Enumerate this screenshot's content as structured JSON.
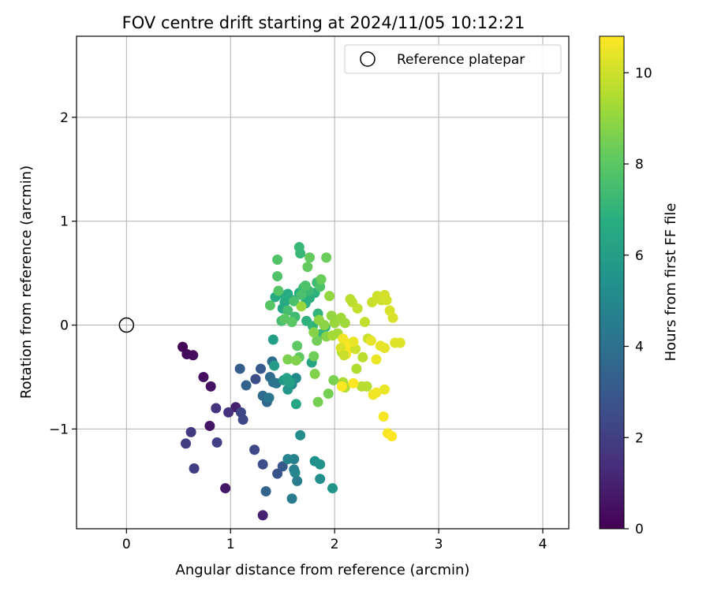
{
  "chart_data": {
    "type": "scatter",
    "title": "FOV centre drift starting at 2024/11/05 10:12:21",
    "xlabel": "Angular distance from reference (arcmin)",
    "ylabel": "Rotation from reference (arcmin)",
    "xlim": [
      -0.48,
      4.25
    ],
    "ylim": [
      -1.96,
      2.78
    ],
    "x_ticks": [
      0,
      1,
      2,
      3,
      4
    ],
    "y_ticks": [
      -1,
      0,
      1,
      2
    ],
    "grid": true,
    "legend_position": "top-right",
    "reference": {
      "label": "Reference platepar",
      "x": 0,
      "y": 0
    },
    "colorbar": {
      "label": "Hours from first FF file",
      "range": [
        0,
        10.8
      ],
      "ticks": [
        0,
        2,
        4,
        6,
        8,
        10
      ],
      "colormap": "viridis"
    },
    "points": [
      [
        0.54,
        -0.21,
        0.1
      ],
      [
        0.58,
        -0.28,
        0.2
      ],
      [
        0.64,
        -0.29,
        0.3
      ],
      [
        0.74,
        -0.5,
        0.4
      ],
      [
        0.81,
        -0.59,
        0.5
      ],
      [
        0.8,
        -0.97,
        0.6
      ],
      [
        0.95,
        -1.57,
        0.7
      ],
      [
        1.05,
        -0.79,
        0.9
      ],
      [
        1.31,
        -1.83,
        1.0
      ],
      [
        0.98,
        -0.84,
        1.5
      ],
      [
        0.86,
        -0.8,
        1.6
      ],
      [
        0.62,
        -1.03,
        1.8
      ],
      [
        0.57,
        -1.14,
        1.9
      ],
      [
        0.65,
        -1.38,
        2.0
      ],
      [
        0.87,
        -1.13,
        2.1
      ],
      [
        1.1,
        -0.84,
        2.2
      ],
      [
        1.12,
        -0.91,
        2.3
      ],
      [
        1.23,
        -1.2,
        2.4
      ],
      [
        1.24,
        -0.52,
        2.5
      ],
      [
        1.31,
        -1.34,
        2.6
      ],
      [
        1.45,
        -1.43,
        2.8
      ],
      [
        1.5,
        -1.36,
        3.0
      ],
      [
        1.29,
        -0.42,
        3.1
      ],
      [
        1.09,
        -0.42,
        3.2
      ],
      [
        1.15,
        -0.58,
        3.4
      ],
      [
        1.34,
        -1.6,
        3.5
      ],
      [
        1.35,
        -0.74,
        3.6
      ],
      [
        1.31,
        -0.68,
        3.7
      ],
      [
        1.38,
        -0.5,
        3.8
      ],
      [
        1.4,
        -0.35,
        3.9
      ],
      [
        1.41,
        -0.55,
        4.0
      ],
      [
        1.44,
        -0.56,
        4.1
      ],
      [
        1.37,
        -0.7,
        4.2
      ],
      [
        1.59,
        -1.67,
        4.4
      ],
      [
        1.64,
        -1.5,
        4.5
      ],
      [
        1.61,
        -1.39,
        4.6
      ],
      [
        1.61,
        -1.29,
        4.7
      ],
      [
        1.55,
        -1.29,
        4.8
      ],
      [
        1.62,
        -1.42,
        4.9
      ],
      [
        1.59,
        -0.57,
        5.0
      ],
      [
        1.63,
        -0.51,
        5.1
      ],
      [
        1.67,
        -1.06,
        5.2
      ],
      [
        1.86,
        -1.48,
        5.3
      ],
      [
        1.81,
        -1.31,
        5.4
      ],
      [
        1.86,
        -1.34,
        5.5
      ],
      [
        1.98,
        -1.57,
        5.6
      ],
      [
        1.55,
        -0.62,
        5.7
      ],
      [
        1.51,
        -0.53,
        5.8
      ],
      [
        1.42,
        -0.39,
        5.9
      ],
      [
        1.41,
        -0.14,
        6.0
      ],
      [
        1.57,
        -0.55,
        6.1
      ],
      [
        1.54,
        -0.51,
        6.2
      ],
      [
        1.78,
        -0.36,
        6.3
      ],
      [
        1.63,
        -0.76,
        6.4
      ],
      [
        1.5,
        0.16,
        6.4
      ],
      [
        1.52,
        0.22,
        6.5
      ],
      [
        1.43,
        0.27,
        6.5
      ],
      [
        1.47,
        0.3,
        6.6
      ],
      [
        1.55,
        0.3,
        6.6
      ],
      [
        1.6,
        0.24,
        6.7
      ],
      [
        1.66,
        0.31,
        6.7
      ],
      [
        1.72,
        0.21,
        6.8
      ],
      [
        1.76,
        0.26,
        6.8
      ],
      [
        1.81,
        0.31,
        6.9
      ],
      [
        1.73,
        0.04,
        6.9
      ],
      [
        1.79,
        -0.01,
        7.0
      ],
      [
        1.84,
        0.11,
        7.0
      ],
      [
        1.86,
        -0.09,
        7.1
      ],
      [
        1.91,
        -0.02,
        7.1
      ],
      [
        1.66,
        0.75,
        7.2
      ],
      [
        1.67,
        0.69,
        7.2
      ],
      [
        1.7,
        0.36,
        7.3
      ],
      [
        1.75,
        0.33,
        7.3
      ],
      [
        1.83,
        0.41,
        7.4
      ],
      [
        1.62,
        0.08,
        7.4
      ],
      [
        1.55,
        0.14,
        7.5
      ],
      [
        1.49,
        0.04,
        7.5
      ],
      [
        1.61,
        0.23,
        7.6
      ],
      [
        1.68,
        0.29,
        7.6
      ],
      [
        1.72,
        0.38,
        7.7
      ],
      [
        1.86,
        0.37,
        7.7
      ],
      [
        1.45,
        0.63,
        7.8
      ],
      [
        1.45,
        0.47,
        7.8
      ],
      [
        1.38,
        0.19,
        7.9
      ],
      [
        1.46,
        0.33,
        7.9
      ],
      [
        1.52,
        0.06,
        8.0
      ],
      [
        1.59,
        0.03,
        8.0
      ],
      [
        1.64,
        -0.2,
        8.1
      ],
      [
        1.66,
        -0.31,
        8.1
      ],
      [
        1.74,
        0.56,
        8.2
      ],
      [
        1.76,
        0.65,
        8.2
      ],
      [
        1.92,
        0.65,
        8.3
      ],
      [
        1.87,
        0.44,
        8.3
      ],
      [
        1.8,
        -0.3,
        8.4
      ],
      [
        1.83,
        -0.15,
        8.4
      ],
      [
        1.94,
        -0.66,
        8.5
      ],
      [
        1.84,
        -0.74,
        8.5
      ],
      [
        1.99,
        -0.53,
        8.6
      ],
      [
        1.55,
        -0.33,
        8.6
      ],
      [
        1.81,
        -0.47,
        8.7
      ],
      [
        1.63,
        -0.34,
        8.7
      ],
      [
        1.8,
        -0.07,
        8.8
      ],
      [
        1.92,
        -0.11,
        8.8
      ],
      [
        1.85,
        0.05,
        8.9
      ],
      [
        1.9,
        0.0,
        8.9
      ],
      [
        1.95,
        0.28,
        9.0
      ],
      [
        1.97,
        0.09,
        9.0
      ],
      [
        1.68,
        0.18,
        9.1
      ],
      [
        2.0,
        0.02,
        9.1
      ],
      [
        2.06,
        0.07,
        9.2
      ],
      [
        2.1,
        0.02,
        9.2
      ],
      [
        2.03,
        -0.08,
        9.3
      ],
      [
        1.98,
        -0.1,
        9.3
      ],
      [
        2.07,
        -0.26,
        9.4
      ],
      [
        2.08,
        -0.55,
        9.4
      ],
      [
        2.1,
        -0.6,
        9.5
      ],
      [
        2.21,
        -0.42,
        9.5
      ],
      [
        2.26,
        -0.59,
        9.6
      ],
      [
        2.31,
        -0.59,
        9.6
      ],
      [
        2.15,
        0.25,
        9.7
      ],
      [
        2.17,
        0.22,
        9.7
      ],
      [
        2.22,
        0.16,
        9.8
      ],
      [
        2.29,
        0.03,
        9.8
      ],
      [
        2.32,
        -0.13,
        9.9
      ],
      [
        2.36,
        0.22,
        9.9
      ],
      [
        2.41,
        0.28,
        10.0
      ],
      [
        2.45,
        0.24,
        10.0
      ],
      [
        2.48,
        0.29,
        10.1
      ],
      [
        2.5,
        0.24,
        10.1
      ],
      [
        2.53,
        0.14,
        10.2
      ],
      [
        2.56,
        0.07,
        10.2
      ],
      [
        2.58,
        -0.17,
        10.3
      ],
      [
        2.63,
        -0.17,
        10.3
      ],
      [
        2.48,
        -0.22,
        10.4
      ],
      [
        2.44,
        -0.2,
        10.4
      ],
      [
        2.4,
        -0.33,
        10.5
      ],
      [
        2.48,
        -0.62,
        10.5
      ],
      [
        2.4,
        -0.65,
        10.6
      ],
      [
        2.37,
        -0.67,
        10.6
      ],
      [
        2.47,
        -0.88,
        10.7
      ],
      [
        2.51,
        -1.04,
        10.7
      ],
      [
        2.55,
        -1.07,
        10.8
      ],
      [
        2.07,
        -0.59,
        10.8
      ],
      [
        2.18,
        -0.56,
        10.8
      ],
      [
        2.15,
        -0.22,
        10.8
      ],
      [
        2.12,
        -0.18,
        10.8
      ],
      [
        2.08,
        -0.13,
        10.6
      ],
      [
        2.06,
        -0.22,
        10.2
      ],
      [
        2.2,
        -0.23,
        10.0
      ],
      [
        2.18,
        -0.16,
        10.5
      ],
      [
        2.11,
        -0.28,
        10.7
      ],
      [
        2.27,
        -0.31,
        9.7
      ],
      [
        2.35,
        -0.15,
        10.4
      ],
      [
        2.09,
        -0.29,
        9.9
      ]
    ]
  }
}
